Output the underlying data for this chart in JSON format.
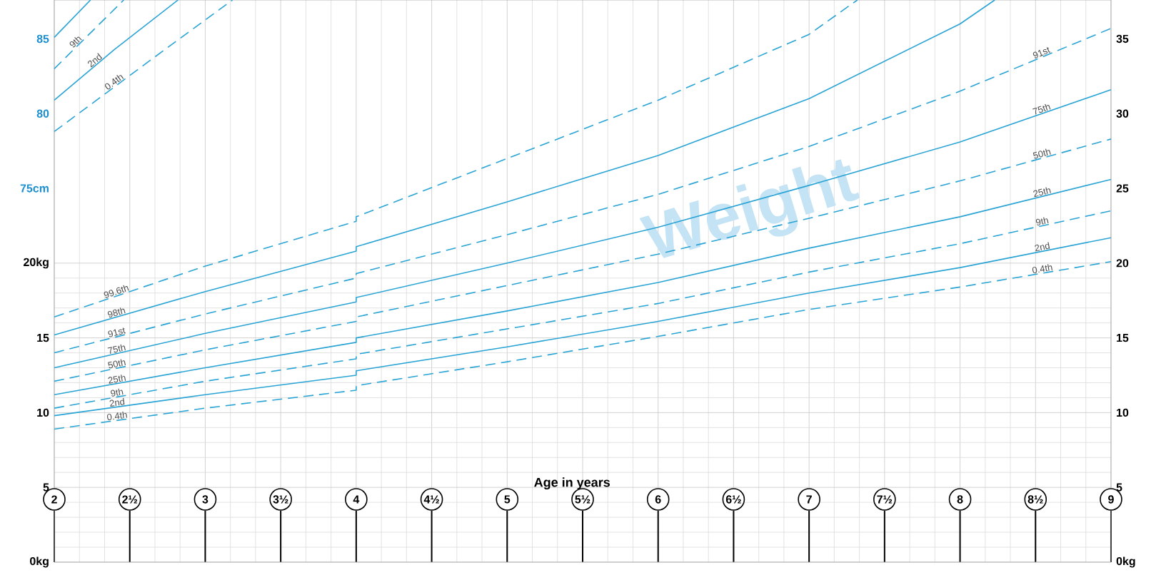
{
  "chart_data": {
    "type": "line",
    "xlabel": "Age in years",
    "annotations": [
      "Weight"
    ],
    "grid": true,
    "xlim": [
      2,
      9
    ],
    "xticks": [
      2,
      {
        "value": 2.5,
        "label": "2½"
      },
      3,
      {
        "value": 3.5,
        "label": "3½"
      },
      4,
      {
        "value": 4.5,
        "label": "4½"
      },
      5,
      {
        "value": 5.5,
        "label": "5½"
      },
      6,
      {
        "value": 6.5,
        "label": "6½"
      },
      7,
      {
        "value": 7.5,
        "label": "7½"
      },
      8,
      {
        "value": 8.5,
        "label": "8½"
      },
      9
    ],
    "ylim": [
      0,
      37.6
    ],
    "yticks": [
      {
        "value": 0,
        "label": "0kg"
      },
      5,
      10,
      15,
      {
        "value": 20,
        "label": "20kg"
      }
    ],
    "y2lim": [
      0,
      37.6
    ],
    "y2ticks": [
      {
        "value": 0,
        "label": "0kg"
      },
      5,
      10,
      15,
      20,
      25,
      30,
      35
    ],
    "y3lim": [
      50,
      87.6
    ],
    "y3ticks": [
      {
        "value": 75,
        "label": "75cm"
      },
      80,
      85
    ],
    "series": [
      {
        "name": "99.6th",
        "color": "#2aa4d5",
        "line_style": "dashed",
        "x": [
          2,
          3,
          4,
          4,
          5,
          6,
          7,
          7.32
        ],
        "values": [
          16.4,
          19.8,
          22.8,
          23.1,
          27.0,
          30.9,
          35.3,
          37.6
        ]
      },
      {
        "name": "98th",
        "color": "#2aa4d5",
        "line_style": "solid",
        "x": [
          2,
          3,
          4,
          4,
          5,
          6,
          7,
          8,
          8.23
        ],
        "values": [
          15.2,
          18.1,
          20.8,
          21.1,
          24.1,
          27.2,
          31.0,
          36.0,
          37.6
        ]
      },
      {
        "name": "91st",
        "color": "#2aa4d5",
        "line_style": "dashed",
        "x": [
          2,
          3,
          4,
          4,
          5,
          6,
          7,
          8,
          9
        ],
        "values": [
          14.0,
          16.6,
          19.0,
          19.3,
          21.9,
          24.6,
          27.8,
          31.5,
          35.7
        ]
      },
      {
        "name": "75th",
        "color": "#2aa4d5",
        "line_style": "solid",
        "x": [
          2,
          3,
          4,
          4,
          5,
          6,
          7,
          8,
          9
        ],
        "values": [
          13.0,
          15.3,
          17.4,
          17.7,
          20.0,
          22.4,
          25.2,
          28.1,
          31.6
        ]
      },
      {
        "name": "50th",
        "color": "#2aa4d5",
        "line_style": "dashed",
        "x": [
          2,
          3,
          4,
          4,
          5,
          6,
          7,
          8,
          9
        ],
        "values": [
          12.1,
          14.2,
          16.1,
          16.4,
          18.5,
          20.6,
          23.0,
          25.5,
          28.3
        ]
      },
      {
        "name": "25th",
        "color": "#2aa4d5",
        "line_style": "solid",
        "x": [
          2,
          3,
          4,
          4,
          5,
          6,
          7,
          8,
          9
        ],
        "values": [
          11.2,
          13.0,
          14.7,
          15.0,
          16.8,
          18.7,
          21.0,
          23.1,
          25.6
        ]
      },
      {
        "name": "9th",
        "color": "#2aa4d5",
        "line_style": "dashed",
        "x": [
          2,
          3,
          4,
          4,
          5,
          6,
          7,
          8,
          9
        ],
        "values": [
          10.3,
          12.1,
          13.6,
          13.9,
          15.6,
          17.3,
          19.4,
          21.3,
          23.5
        ]
      },
      {
        "name": "2nd",
        "color": "#2aa4d5",
        "line_style": "solid",
        "x": [
          2,
          3,
          4,
          4,
          5,
          6,
          7,
          8,
          9
        ],
        "values": [
          9.8,
          11.2,
          12.5,
          12.8,
          14.4,
          16.1,
          18.0,
          19.7,
          21.7
        ]
      },
      {
        "name": "0.4th",
        "color": "#2aa4d5",
        "line_style": "dashed",
        "x": [
          2,
          3,
          4,
          4,
          5,
          6,
          7,
          8,
          9
        ],
        "values": [
          8.9,
          10.3,
          11.5,
          11.8,
          13.4,
          15.1,
          16.9,
          18.4,
          20.1
        ]
      },
      {
        "color": "#2aa4d5",
        "line_style": "solid",
        "axis": "y3",
        "x": [
          2,
          2.24
        ],
        "values": [
          85.1,
          87.6
        ]
      },
      {
        "name": "9th",
        "color": "#2aa4d5",
        "line_style": "dashed",
        "axis": "y3",
        "x": [
          2,
          2.23,
          2.46
        ],
        "values": [
          83.0,
          85.3,
          87.6
        ]
      },
      {
        "name": "2nd",
        "color": "#2aa4d5",
        "line_style": "solid",
        "axis": "y3",
        "x": [
          2,
          2.4,
          2.82
        ],
        "values": [
          80.9,
          84.3,
          87.6
        ]
      },
      {
        "name": "0.4th",
        "color": "#2aa4d5",
        "line_style": "dashed",
        "axis": "y3",
        "x": [
          2,
          2.6,
          3.18
        ],
        "values": [
          78.8,
          83.3,
          87.6
        ]
      }
    ]
  }
}
